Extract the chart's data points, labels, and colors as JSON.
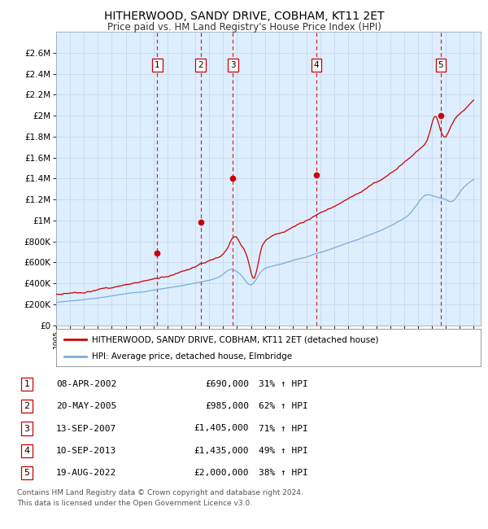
{
  "title": "HITHERWOOD, SANDY DRIVE, COBHAM, KT11 2ET",
  "subtitle": "Price paid vs. HM Land Registry's House Price Index (HPI)",
  "legend_line1": "HITHERWOOD, SANDY DRIVE, COBHAM, KT11 2ET (detached house)",
  "legend_line2": "HPI: Average price, detached house, Elmbridge",
  "footer_line1": "Contains HM Land Registry data © Crown copyright and database right 2024.",
  "footer_line2": "This data is licensed under the Open Government Licence v3.0.",
  "transactions": [
    {
      "num": 1,
      "date": "2002-04-08",
      "price": 690000,
      "pct": "31%",
      "x_year": 2002.27
    },
    {
      "num": 2,
      "date": "2005-05-20",
      "price": 985000,
      "pct": "62%",
      "x_year": 2005.38
    },
    {
      "num": 3,
      "date": "2007-09-13",
      "price": 1405000,
      "pct": "71%",
      "x_year": 2007.7
    },
    {
      "num": 4,
      "date": "2013-09-10",
      "price": 1435000,
      "pct": "49%",
      "x_year": 2013.69
    },
    {
      "num": 5,
      "date": "2022-08-19",
      "price": 2000000,
      "pct": "38%",
      "x_year": 2022.63
    }
  ],
  "table_rows": [
    {
      "num": 1,
      "date_str": "08-APR-2002",
      "price_str": "£690,000",
      "pct_str": "31% ↑ HPI"
    },
    {
      "num": 2,
      "date_str": "20-MAY-2005",
      "price_str": "£985,000",
      "pct_str": "62% ↑ HPI"
    },
    {
      "num": 3,
      "date_str": "13-SEP-2007",
      "price_str": "£1,405,000",
      "pct_str": "71% ↑ HPI"
    },
    {
      "num": 4,
      "date_str": "10-SEP-2013",
      "price_str": "£1,435,000",
      "pct_str": "49% ↑ HPI"
    },
    {
      "num": 5,
      "date_str": "19-AUG-2022",
      "price_str": "£2,000,000",
      "pct_str": "38% ↑ HPI"
    }
  ],
  "red_color": "#cc0000",
  "blue_color": "#7aaddb",
  "bg_color": "#ddeeff",
  "grid_color": "#c5d5e8",
  "dashed_line_color": "#cc0000",
  "box_color": "#cc0000",
  "ylim_min": 0,
  "ylim_max": 2800000,
  "xmin": 1995,
  "xmax": 2025.5,
  "yticks": [
    0,
    200000,
    400000,
    600000,
    800000,
    1000000,
    1200000,
    1400000,
    1600000,
    1800000,
    2000000,
    2200000,
    2400000,
    2600000
  ]
}
